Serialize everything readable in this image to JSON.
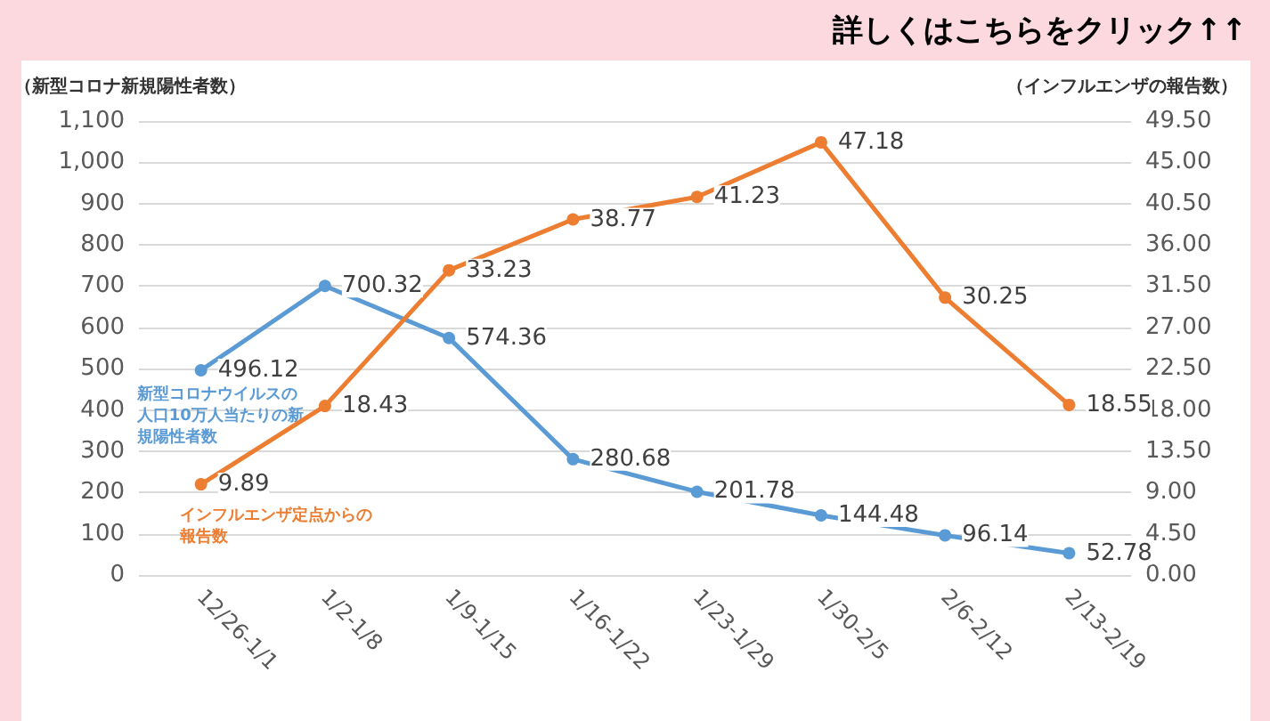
{
  "chart_data": {
    "type": "line",
    "title": "詳しくはこちらをクリック↑↑",
    "ylabel": "（新型コロナ新規陽性者数）",
    "y2label": "（インフルエンザの報告数）",
    "categories": [
      "12/26-1/1",
      "1/2-1/8",
      "1/9-1/15",
      "1/16-1/22",
      "1/23-1/29",
      "1/30-2/5",
      "2/6-2/12",
      "2/13-2/19"
    ],
    "series": [
      {
        "name": "新型コロナウイルスの人口10万人当たりの新規陽性者数",
        "color": "#5b9bd5",
        "values": [
          496.12,
          700.32,
          574.36,
          280.68,
          201.78,
          144.48,
          96.14,
          52.78
        ]
      },
      {
        "name": "インフルエンザ定点からの報告数",
        "color": "#ed7d31",
        "axis": "y2",
        "values": [
          9.89,
          18.43,
          33.23,
          38.77,
          41.23,
          47.18,
          30.25,
          18.55
        ]
      }
    ],
    "ylim": [
      0,
      1100
    ],
    "yticks": [
      0,
      100,
      200,
      300,
      400,
      500,
      600,
      700,
      800,
      900,
      {
        "value": 1000,
        "label": "1,000"
      },
      {
        "value": 1100,
        "label": "1,100"
      }
    ],
    "y2lim": [
      0,
      49.5
    ],
    "y2ticks": [
      {
        "value": 0,
        "label": "0.00"
      },
      {
        "value": 4.5,
        "label": "4.50"
      },
      {
        "value": 9,
        "label": "9.00"
      },
      {
        "value": 13.5,
        "label": "13.50"
      },
      {
        "value": 18,
        "label": "18.00"
      },
      {
        "value": 22.5,
        "label": "22.50"
      },
      {
        "value": 27,
        "label": "27.00"
      },
      {
        "value": 31.5,
        "label": "31.50"
      },
      {
        "value": 36,
        "label": "36.00"
      },
      {
        "value": 40.5,
        "label": "40.50"
      },
      {
        "value": 45,
        "label": "45.00"
      },
      {
        "value": 49.5,
        "label": "49.50"
      }
    ],
    "grid": "y",
    "marker": "circle",
    "line_style": "solid",
    "data_labels": true,
    "legend": false
  }
}
